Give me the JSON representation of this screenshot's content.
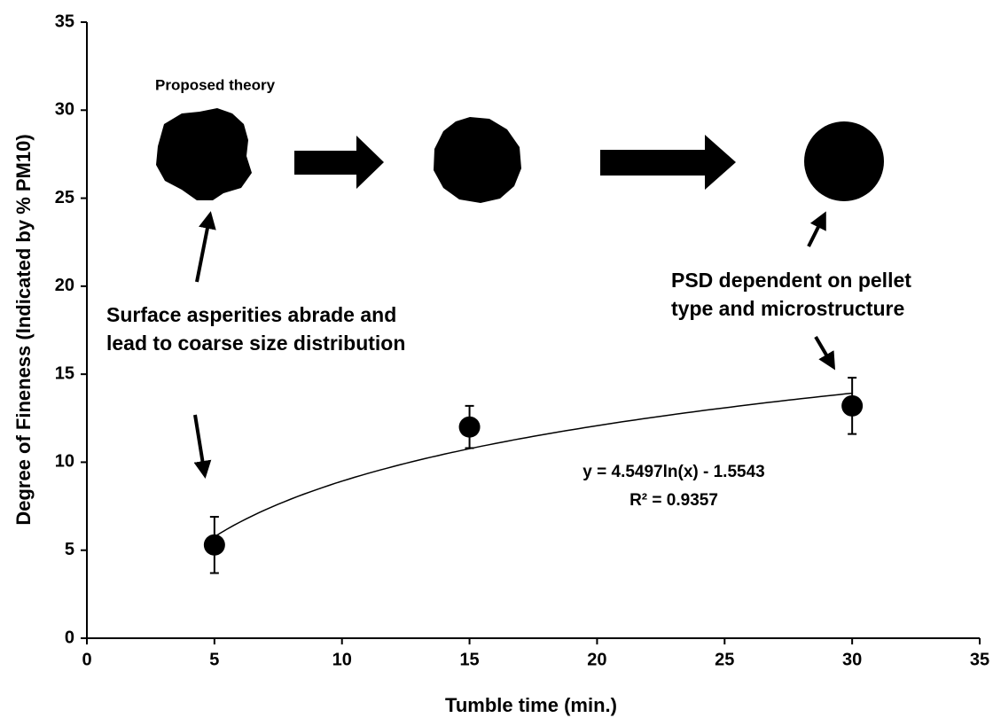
{
  "chart_data": {
    "type": "scatter",
    "x_label": "Tumble time (min.)",
    "y_label": "Degree of Fineness (Indicated by % PM10)",
    "x": [
      5,
      15,
      30
    ],
    "series": [
      {
        "color": "#000000",
        "values": [
          5.3,
          12.0,
          13.2
        ],
        "errors": [
          1.6,
          1.2,
          1.6
        ]
      }
    ],
    "xlim": [
      0,
      35
    ],
    "xticks": [
      0,
      5,
      10,
      15,
      20,
      25,
      30,
      35
    ],
    "ylim": [
      0,
      35
    ],
    "yticks": [
      0,
      5,
      10,
      15,
      20,
      25,
      30,
      35
    ],
    "grid": false,
    "trendline": {
      "type": "log",
      "a": 4.5497,
      "b": -1.5543,
      "equation": "y = 4.5497ln(x) - 1.5543",
      "r2": "R² = 0.9357"
    },
    "annotations": {
      "theory": "Proposed theory",
      "surface": [
        "Surface asperities abrade and",
        "lead to coarse size distribution"
      ],
      "psd": [
        "PSD dependent on pellet",
        "type and microstructure"
      ]
    }
  }
}
